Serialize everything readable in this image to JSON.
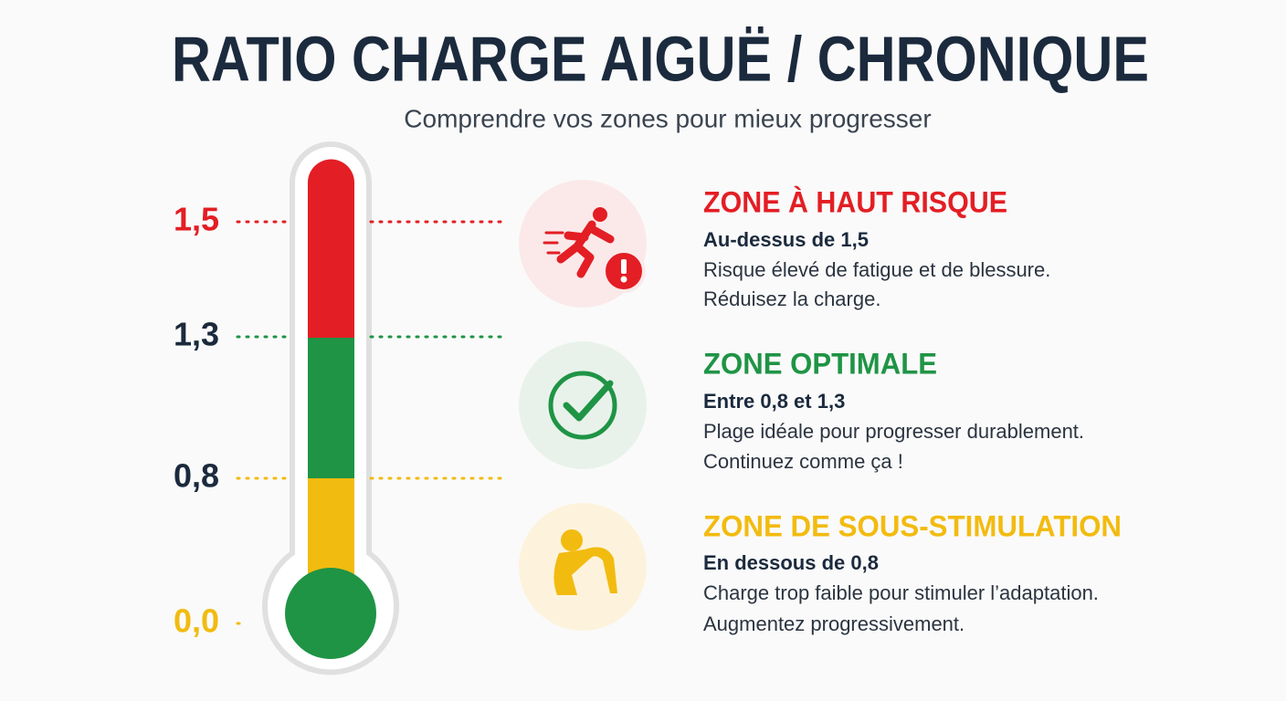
{
  "header": {
    "title": "RATIO CHARGE AIGUË / CHRONIQUE",
    "subtitle": "Comprendre vos zones pour mieux progresser"
  },
  "gauge": {
    "ticks": [
      "1,5",
      "1,3",
      "0,8",
      "0,0"
    ]
  },
  "zones": [
    {
      "title": "ZONE À HAUT RISQUE",
      "range": "Au-dessus de 1,5",
      "lines": [
        "Risque élevé de fatigue et de blessure.",
        "Réduisez la charge."
      ]
    },
    {
      "title": "ZONE OPTIMALE",
      "range": "Entre 0,8 et 1,3",
      "lines": [
        "Plage idéale pour progresser durablement.",
        "Continuez comme ça !"
      ]
    },
    {
      "title": "ZONE DE SOUS-STIMULATION",
      "range": "En dessous de 0,8",
      "lines": [
        "Charge trop faible pour stimuler l’adaptation.",
        "Augmentez progressivement."
      ]
    }
  ]
}
